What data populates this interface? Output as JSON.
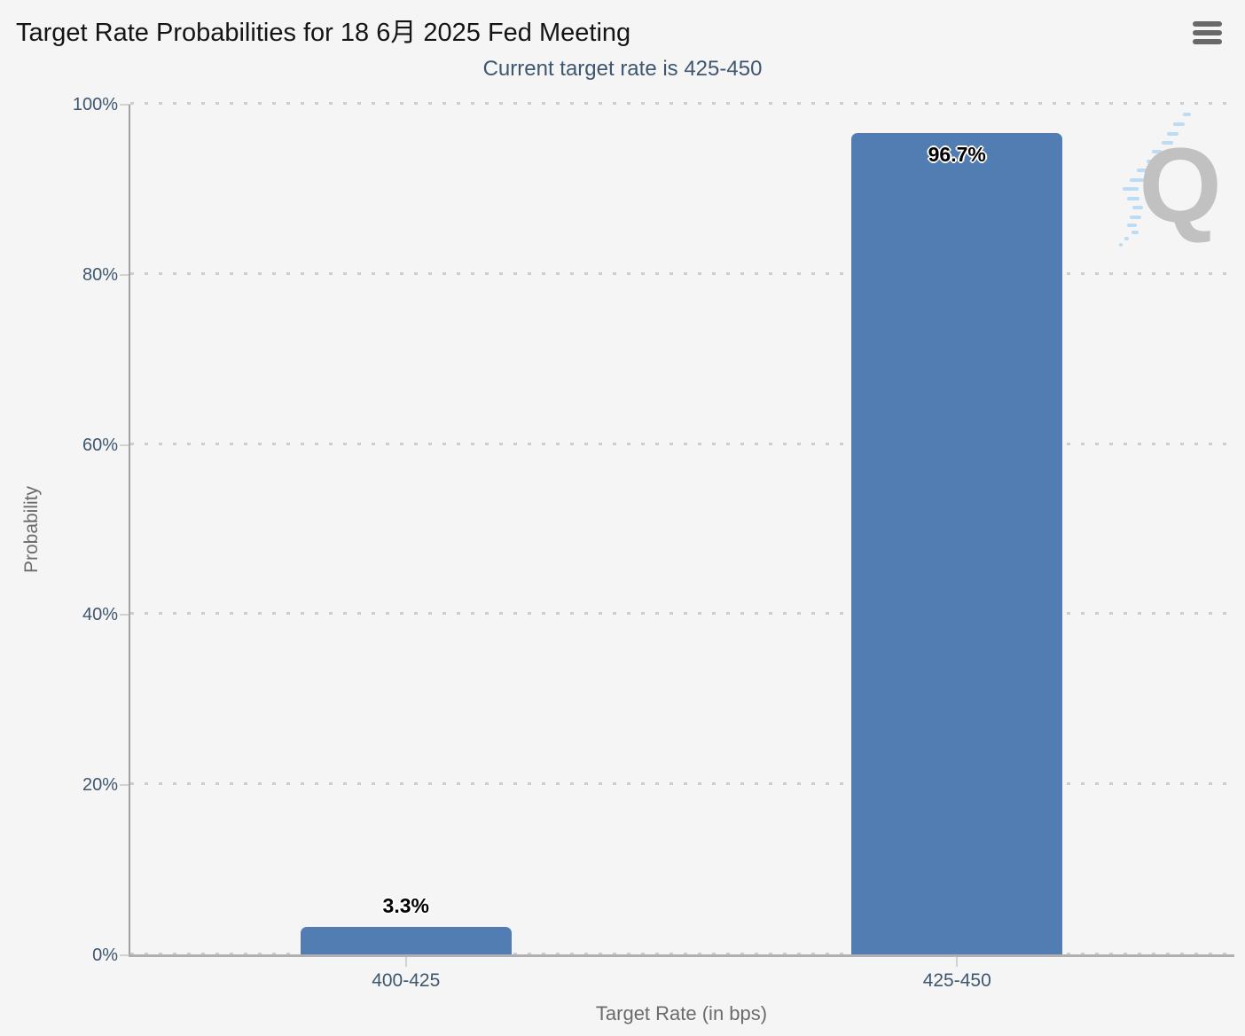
{
  "chart_data": {
    "type": "bar",
    "title": "Target Rate Probabilities for 18 6月 2025 Fed Meeting",
    "subtitle": "Current target rate is 425-450",
    "categories": [
      "400-425",
      "425-450"
    ],
    "values": [
      3.3,
      96.7
    ],
    "data_labels": [
      "3.3%",
      "96.7%"
    ],
    "xlabel": "Target Rate (in bps)",
    "ylabel": "Probability",
    "ylim": [
      0,
      100
    ],
    "ytick_step": 20,
    "ytick_labels": [
      "0%",
      "20%",
      "40%",
      "60%",
      "80%",
      "100%"
    ],
    "legend": "none",
    "grid": "dotted-horizontal",
    "bar_color": "#527DB3",
    "watermark_letter": "Q"
  },
  "header": {
    "menu_icon": "hamburger-menu-icon"
  },
  "colors": {
    "background": "#f5f5f5",
    "title_text": "#151515",
    "subtitle_text": "#3E576F",
    "tick_label_text": "#3E576F",
    "axis_title_text": "#6b6b6b",
    "axis_line": "#a2a2a2",
    "gridline": "#cdcdcd",
    "bar": "#527DB3",
    "watermark_q": "#bcbcbc",
    "watermark_dash": "#b5daf3",
    "menu_icon": "#686868"
  }
}
